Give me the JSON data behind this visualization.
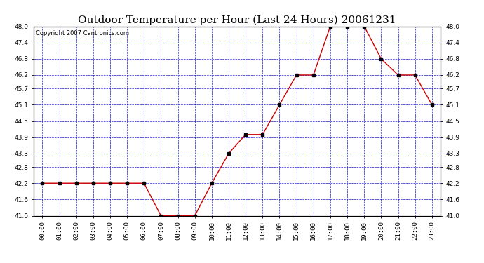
{
  "title": "Outdoor Temperature per Hour (Last 24 Hours) 20061231",
  "copyright_text": "Copyright 2007 Cantronics.com",
  "hours": [
    "00:00",
    "01:00",
    "02:00",
    "03:00",
    "04:00",
    "05:00",
    "06:00",
    "07:00",
    "08:00",
    "09:00",
    "10:00",
    "11:00",
    "12:00",
    "13:00",
    "14:00",
    "15:00",
    "16:00",
    "17:00",
    "18:00",
    "19:00",
    "20:00",
    "21:00",
    "22:00",
    "23:00"
  ],
  "temperatures": [
    42.2,
    42.2,
    42.2,
    42.2,
    42.2,
    42.2,
    42.2,
    41.0,
    41.0,
    41.0,
    42.2,
    43.3,
    44.0,
    44.0,
    45.1,
    46.2,
    46.2,
    48.0,
    48.0,
    48.0,
    46.8,
    46.2,
    46.2,
    45.1
  ],
  "line_color": "#cc0000",
  "marker_color": "#000000",
  "grid_color": "#0000cc",
  "background_color": "#ffffff",
  "plot_bg_color": "#ffffff",
  "ylim": [
    41.0,
    48.0
  ],
  "yticks": [
    41.0,
    41.6,
    42.2,
    42.8,
    43.3,
    43.9,
    44.5,
    45.1,
    45.7,
    46.2,
    46.8,
    47.4,
    48.0
  ],
  "title_fontsize": 11,
  "tick_fontsize": 6.5,
  "copyright_fontsize": 6
}
